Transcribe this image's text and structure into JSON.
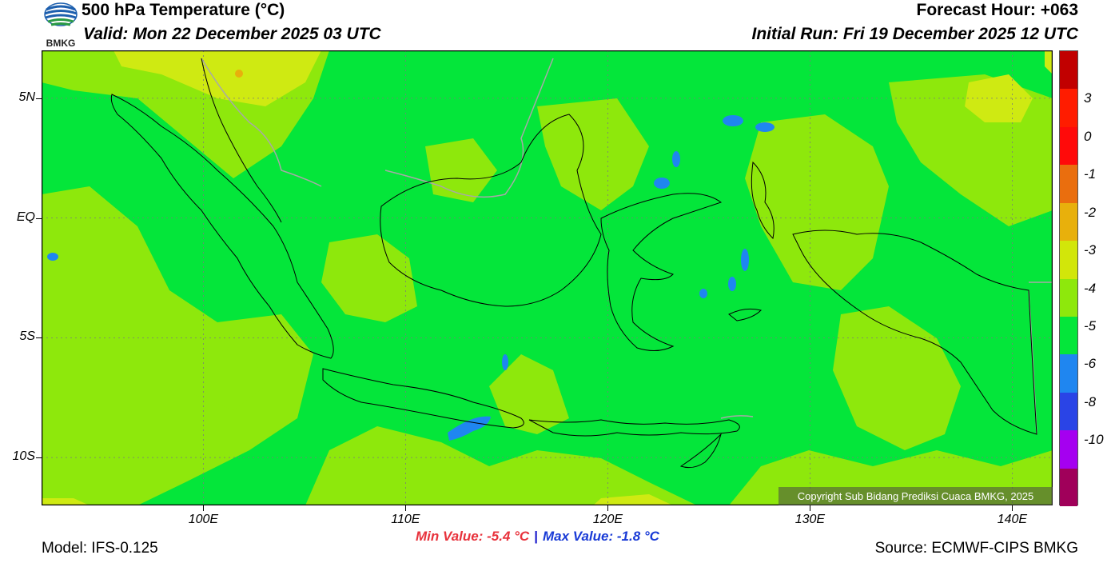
{
  "header": {
    "logo_text": "BMKG",
    "title": "500 hPa Temperature (°C)",
    "valid": "Valid: Mon 22 December 2025 03 UTC",
    "forecast_hour": "Forecast Hour: +063",
    "initial_run": "Initial Run: Fri 19 December 2025 12 UTC"
  },
  "map": {
    "x_axis": {
      "labels": [
        "100E",
        "110E",
        "120E",
        "130E",
        "140E"
      ],
      "values": [
        100,
        110,
        120,
        130,
        140
      ],
      "range": [
        92,
        142
      ]
    },
    "y_axis": {
      "labels": [
        "5N",
        "EQ",
        "5S",
        "10S"
      ],
      "values": [
        5,
        0,
        -5,
        -10
      ],
      "range": [
        -12,
        7
      ]
    },
    "grid": "dotted",
    "field_colors": {
      "base": "#04e63a",
      "light_green": "#8ee80c",
      "yellow_green": "#cfea12",
      "blue": "#1f86f0",
      "coast": "#000000",
      "border": "#a8a8a8"
    },
    "copyright": "Copyright Sub Bidang Prediksi Cuaca BMKG, 2025"
  },
  "colorbar": {
    "labels": [
      "3",
      "0",
      "-1",
      "-2",
      "-3",
      "-4",
      "-5",
      "-6",
      "-8",
      "-10"
    ],
    "colors": [
      "#c10000",
      "#ff1c00",
      "#ff0a0a",
      "#ea6e0e",
      "#e8b00c",
      "#d2e60a",
      "#8ee80c",
      "#04e63a",
      "#1f86f0",
      "#2a44e6",
      "#a500f0",
      "#a0005a"
    ]
  },
  "stats": {
    "min_label": "Min Value: -5.4 °C",
    "separator": "|",
    "max_label": "Max Value: -1.8 °C"
  },
  "footer": {
    "model": "Model: IFS-0.125",
    "source": "Source: ECMWF-CIPS BMKG"
  }
}
